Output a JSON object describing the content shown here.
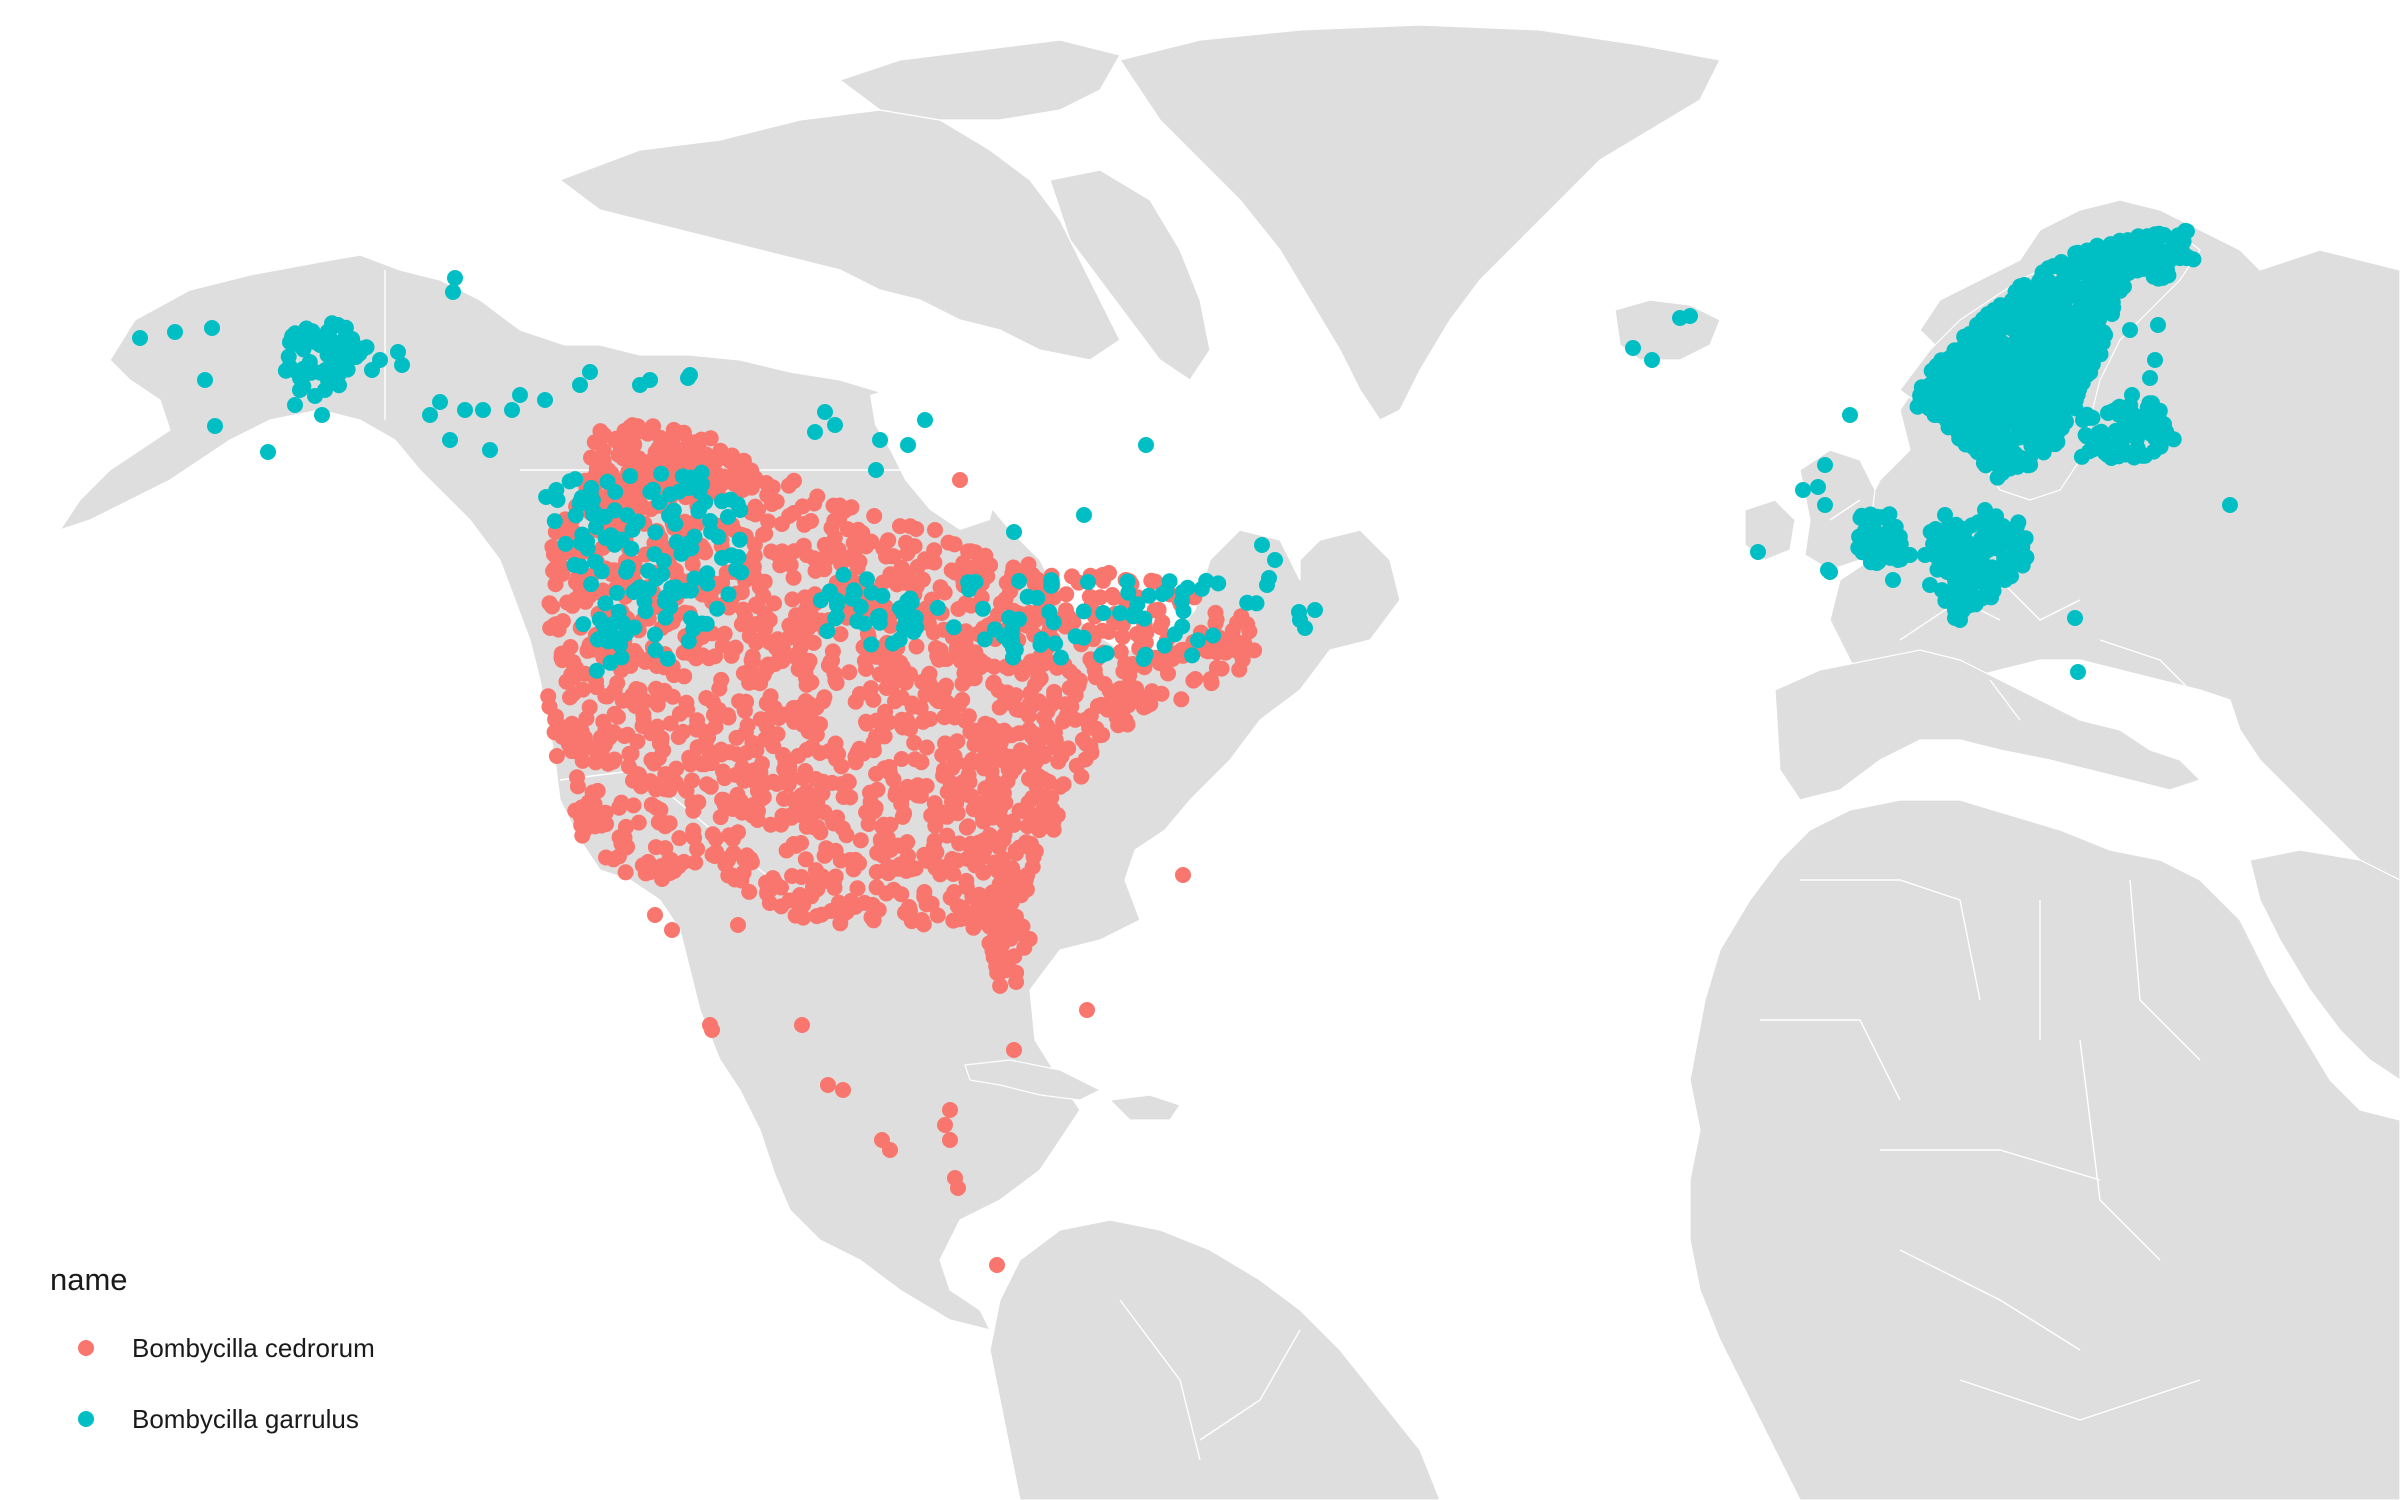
{
  "map": {
    "type": "point-occurrence-map",
    "land_color": "#dedede",
    "background": "#ffffff",
    "region": "North America, North Atlantic, Europe, Africa"
  },
  "legend": {
    "title": "name",
    "entries": [
      {
        "label": "Bombycilla cedrorum",
        "color": "#F8766D"
      },
      {
        "label": "Bombycilla garrulus",
        "color": "#00BFC4"
      }
    ]
  },
  "series": [
    {
      "name": "Bombycilla cedrorum",
      "color": "#F8766D",
      "description": "dense across southern Canada, United States, Mexico and Central America"
    },
    {
      "name": "Bombycilla garrulus",
      "color": "#00BFC4",
      "description": "Alaska, western and central Canada, Iceland, Fennoscandia, northern Europe"
    }
  ]
}
